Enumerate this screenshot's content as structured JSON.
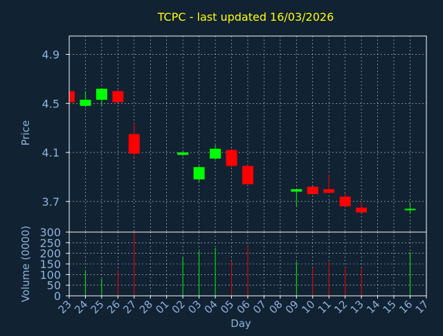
{
  "chart_data": {
    "type": "candlestick",
    "title": "TCPC - last updated 16/03/2026",
    "colors": {
      "background": "#112233",
      "text": "#8fb3d9",
      "title": "#ffff00",
      "up": "#00ff00",
      "down": "#ff0000",
      "grid": "#ffffff"
    },
    "days": [
      "23",
      "24",
      "25",
      "26",
      "27",
      "28",
      "01",
      "02",
      "03",
      "04",
      "05",
      "06",
      "07",
      "08",
      "09",
      "10",
      "11",
      "12",
      "13",
      "14",
      "15",
      "16",
      "17"
    ],
    "price_panel": {
      "ylabel": "Price",
      "ylim": [
        3.45,
        5.05
      ],
      "yticks": [
        3.7,
        4.1,
        4.5,
        4.9
      ],
      "ytick_labels": [
        "3.7",
        "4.1",
        "4.5",
        "4.9"
      ],
      "grid": true,
      "candles": [
        {
          "day": "23",
          "open": 4.6,
          "high": 4.61,
          "low": 4.5,
          "close": 4.51
        },
        {
          "day": "24",
          "open": 4.48,
          "high": 4.6,
          "low": 4.47,
          "close": 4.53
        },
        {
          "day": "25",
          "open": 4.53,
          "high": 4.62,
          "low": 4.48,
          "close": 4.62
        },
        {
          "day": "26",
          "open": 4.6,
          "high": 4.61,
          "low": 4.51,
          "close": 4.51
        },
        {
          "day": "27",
          "open": 4.25,
          "high": 4.34,
          "low": 4.06,
          "close": 4.09
        },
        {
          "day": "02",
          "open": 4.08,
          "high": 4.11,
          "low": 4.07,
          "close": 4.1
        },
        {
          "day": "03",
          "open": 3.88,
          "high": 3.99,
          "low": 3.86,
          "close": 3.98
        },
        {
          "day": "04",
          "open": 4.05,
          "high": 4.16,
          "low": 4.04,
          "close": 4.13
        },
        {
          "day": "05",
          "open": 4.12,
          "high": 4.13,
          "low": 3.98,
          "close": 3.99
        },
        {
          "day": "06",
          "open": 3.99,
          "high": 4.0,
          "low": 3.84,
          "close": 3.84
        },
        {
          "day": "09",
          "open": 3.78,
          "high": 3.8,
          "low": 3.66,
          "close": 3.8
        },
        {
          "day": "10",
          "open": 3.82,
          "high": 3.82,
          "low": 3.76,
          "close": 3.76
        },
        {
          "day": "11",
          "open": 3.8,
          "high": 3.92,
          "low": 3.77,
          "close": 3.77
        },
        {
          "day": "12",
          "open": 3.74,
          "high": 3.77,
          "low": 3.66,
          "close": 3.66
        },
        {
          "day": "13",
          "open": 3.65,
          "high": 3.7,
          "low": 3.61,
          "close": 3.61
        },
        {
          "day": "16",
          "open": 3.63,
          "high": 3.69,
          "low": 3.6,
          "close": 3.64
        }
      ]
    },
    "volume_panel": {
      "ylabel": "Volume (0000)",
      "ylim": [
        0,
        300
      ],
      "yticks": [
        0,
        50,
        100,
        150,
        200,
        250,
        300
      ],
      "ytick_labels": [
        "0",
        "50",
        "100",
        "150",
        "200",
        "250",
        "300"
      ],
      "bars": [
        {
          "day": "23",
          "value": 130,
          "dir": "down"
        },
        {
          "day": "24",
          "value": 120,
          "dir": "up"
        },
        {
          "day": "25",
          "value": 80,
          "dir": "up"
        },
        {
          "day": "26",
          "value": 120,
          "dir": "down"
        },
        {
          "day": "27",
          "value": 300,
          "dir": "down"
        },
        {
          "day": "02",
          "value": 180,
          "dir": "up"
        },
        {
          "day": "03",
          "value": 210,
          "dir": "up"
        },
        {
          "day": "04",
          "value": 225,
          "dir": "up"
        },
        {
          "day": "05",
          "value": 165,
          "dir": "down"
        },
        {
          "day": "06",
          "value": 238,
          "dir": "down"
        },
        {
          "day": "09",
          "value": 160,
          "dir": "up"
        },
        {
          "day": "10",
          "value": 132,
          "dir": "down"
        },
        {
          "day": "11",
          "value": 160,
          "dir": "down"
        },
        {
          "day": "12",
          "value": 135,
          "dir": "down"
        },
        {
          "day": "13",
          "value": 130,
          "dir": "down"
        },
        {
          "day": "16",
          "value": 205,
          "dir": "up"
        }
      ]
    },
    "xlabel": "Day"
  }
}
